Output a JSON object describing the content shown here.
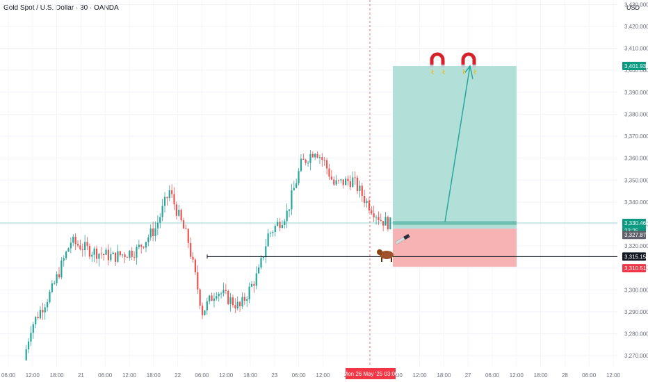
{
  "chart": {
    "title": "Gold Spot / U.S. Dollar · 30 · OANDA",
    "currency": "USD",
    "colors": {
      "bull": "#26a69a",
      "bear": "#ef5350",
      "profit_zone": "#b2e0d8",
      "loss_zone": "#f7b3b3",
      "price_badge": "#089981",
      "target_badge": "#089981",
      "stop_badge": "#f23645",
      "grey_badge": "#5d606b",
      "black_badge": "#131722",
      "date_badge": "#f23645",
      "crosshair": "#f23645"
    },
    "icons": [
      "magnet-icon",
      "magnet-icon",
      "bull-icon",
      "knife-icon"
    ],
    "current_time_left": "23:25"
  },
  "chart_data": {
    "type": "candlestick",
    "title": "Gold Spot / U.S. Dollar · 30 · OANDA",
    "y_axis": {
      "unit": "USD",
      "range": [
        3265,
        3432
      ],
      "ticks": [
        3270,
        3280,
        3290,
        3300,
        3310,
        3320,
        3330,
        3340,
        3350,
        3360,
        3370,
        3380,
        3390,
        3400,
        3410,
        3420,
        3430
      ],
      "tick_labels": [
        "3,270.000",
        "3,280.000",
        "3,290.000",
        "3,300.000",
        "3,310.000",
        "3,320.000",
        "3,330.000",
        "3,340.000",
        "3,350.000",
        "3,360.000",
        "3,370.000",
        "3,380.000",
        "3,390.000",
        "3,400.000",
        "3,410.000",
        "3,420.000",
        "3,430.000"
      ]
    },
    "x_axis": {
      "tick_labels": [
        "06:00",
        "12:00",
        "18:00",
        "21",
        "06:00",
        "12:00",
        "18:00",
        "22",
        "06:00",
        "12:00",
        "18:00",
        "23",
        "06:00",
        "12:00",
        "25",
        "Mon 26 May '25",
        "03:00",
        "12:00",
        "18:00",
        "27",
        "06:00",
        "12:00",
        "18:00",
        "28",
        "06:00",
        "12:00"
      ],
      "highlighted_label": "Mon 26 May '25   03:00"
    },
    "series_trend_points": [
      {
        "t": 0,
        "price": 3268
      },
      {
        "t": 3,
        "price": 3283
      },
      {
        "t": 12,
        "price": 3300
      },
      {
        "t": 20,
        "price": 3322
      },
      {
        "t": 28,
        "price": 3318
      },
      {
        "t": 38,
        "price": 3315
      },
      {
        "t": 48,
        "price": 3318
      },
      {
        "t": 56,
        "price": 3328
      },
      {
        "t": 62,
        "price": 3345
      },
      {
        "t": 70,
        "price": 3322
      },
      {
        "t": 76,
        "price": 3290
      },
      {
        "t": 82,
        "price": 3300
      },
      {
        "t": 92,
        "price": 3292
      },
      {
        "t": 100,
        "price": 3308
      },
      {
        "t": 104,
        "price": 3325
      },
      {
        "t": 112,
        "price": 3335
      },
      {
        "t": 118,
        "price": 3357
      },
      {
        "t": 124,
        "price": 3364
      },
      {
        "t": 128,
        "price": 3358
      },
      {
        "t": 132,
        "price": 3348
      },
      {
        "t": 140,
        "price": 3350
      },
      {
        "t": 146,
        "price": 3340
      },
      {
        "t": 152,
        "price": 3332
      },
      {
        "t": 156,
        "price": 3330
      }
    ],
    "levels": [
      {
        "name": "current",
        "value": 3330.46,
        "label": "3,330.460"
      },
      {
        "name": "entry",
        "value": 3327.875,
        "label": "3,327.875"
      },
      {
        "name": "support",
        "value": 3315.155,
        "label": "3,315.155"
      },
      {
        "name": "stop",
        "value": 3310.519,
        "label": "3,310.519"
      },
      {
        "name": "target",
        "value": 3401.939,
        "label": "3,401.939"
      }
    ],
    "position": {
      "type": "long",
      "entry": 3327.875,
      "target": 3401.939,
      "stop": 3310.519
    },
    "grid": true
  }
}
